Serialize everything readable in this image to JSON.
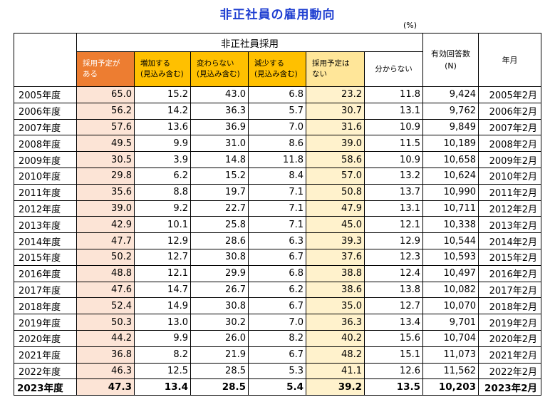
{
  "title": "非正社員の雇用動向",
  "unit": "(%)",
  "headers": {
    "group": "非正社員採用",
    "col1": [
      "採用予定が",
      "ある"
    ],
    "col2": [
      "増加する",
      "(見込み含む)"
    ],
    "col3": [
      "変わらない",
      "(見込み含む)"
    ],
    "col4": [
      "減少する",
      "(見込み含む)"
    ],
    "col5": [
      "採用予定は",
      "ない"
    ],
    "col6": "分からない",
    "responses": [
      "有効回答数",
      "(N)"
    ],
    "yearmonth": "年月"
  },
  "rows": [
    {
      "year": "2005年度",
      "v1": "65.0",
      "v2": "15.2",
      "v3": "43.0",
      "v4": "6.8",
      "v5": "23.2",
      "v6": "11.8",
      "n": "9,424",
      "ym": "2005年2月"
    },
    {
      "year": "2006年度",
      "v1": "56.2",
      "v2": "14.2",
      "v3": "36.3",
      "v4": "5.7",
      "v5": "30.7",
      "v6": "13.1",
      "n": "9,762",
      "ym": "2006年2月"
    },
    {
      "year": "2007年度",
      "v1": "57.6",
      "v2": "13.6",
      "v3": "36.9",
      "v4": "7.0",
      "v5": "31.6",
      "v6": "10.9",
      "n": "9,849",
      "ym": "2007年2月"
    },
    {
      "year": "2008年度",
      "v1": "49.5",
      "v2": "9.9",
      "v3": "31.0",
      "v4": "8.6",
      "v5": "39.0",
      "v6": "11.5",
      "n": "10,189",
      "ym": "2008年2月"
    },
    {
      "year": "2009年度",
      "v1": "30.5",
      "v2": "3.9",
      "v3": "14.8",
      "v4": "11.8",
      "v5": "58.6",
      "v6": "10.9",
      "n": "10,658",
      "ym": "2009年2月"
    },
    {
      "year": "2010年度",
      "v1": "29.8",
      "v2": "6.2",
      "v3": "15.2",
      "v4": "8.4",
      "v5": "57.0",
      "v6": "13.2",
      "n": "10,624",
      "ym": "2010年2月"
    },
    {
      "year": "2011年度",
      "v1": "35.6",
      "v2": "8.8",
      "v3": "19.7",
      "v4": "7.1",
      "v5": "50.8",
      "v6": "13.7",
      "n": "10,990",
      "ym": "2011年2月"
    },
    {
      "year": "2012年度",
      "v1": "39.0",
      "v2": "9.2",
      "v3": "22.7",
      "v4": "7.1",
      "v5": "47.9",
      "v6": "13.1",
      "n": "10,711",
      "ym": "2012年2月"
    },
    {
      "year": "2013年度",
      "v1": "42.9",
      "v2": "10.1",
      "v3": "25.8",
      "v4": "7.1",
      "v5": "45.0",
      "v6": "12.1",
      "n": "10,338",
      "ym": "2013年2月"
    },
    {
      "year": "2014年度",
      "v1": "47.7",
      "v2": "12.9",
      "v3": "28.6",
      "v4": "6.3",
      "v5": "39.3",
      "v6": "12.9",
      "n": "10,544",
      "ym": "2014年2月"
    },
    {
      "year": "2015年度",
      "v1": "50.2",
      "v2": "12.7",
      "v3": "30.8",
      "v4": "6.7",
      "v5": "37.6",
      "v6": "12.3",
      "n": "10,593",
      "ym": "2015年2月"
    },
    {
      "year": "2016年度",
      "v1": "48.8",
      "v2": "12.1",
      "v3": "29.9",
      "v4": "6.8",
      "v5": "38.8",
      "v6": "12.4",
      "n": "10,497",
      "ym": "2016年2月"
    },
    {
      "year": "2017年度",
      "v1": "47.6",
      "v2": "14.7",
      "v3": "26.7",
      "v4": "6.2",
      "v5": "38.6",
      "v6": "13.8",
      "n": "10,082",
      "ym": "2017年2月"
    },
    {
      "year": "2018年度",
      "v1": "52.4",
      "v2": "14.9",
      "v3": "30.8",
      "v4": "6.7",
      "v5": "35.0",
      "v6": "12.7",
      "n": "10,070",
      "ym": "2018年2月"
    },
    {
      "year": "2019年度",
      "v1": "50.3",
      "v2": "13.0",
      "v3": "30.2",
      "v4": "7.0",
      "v5": "36.3",
      "v6": "13.4",
      "n": "9,701",
      "ym": "2019年2月"
    },
    {
      "year": "2020年度",
      "v1": "44.2",
      "v2": "9.9",
      "v3": "26.0",
      "v4": "8.2",
      "v5": "40.2",
      "v6": "15.6",
      "n": "10,704",
      "ym": "2020年2月"
    },
    {
      "year": "2021年度",
      "v1": "36.8",
      "v2": "8.2",
      "v3": "21.9",
      "v4": "6.7",
      "v5": "48.2",
      "v6": "15.1",
      "n": "11,073",
      "ym": "2021年2月"
    },
    {
      "year": "2022年度",
      "v1": "46.3",
      "v2": "12.5",
      "v3": "28.5",
      "v4": "5.3",
      "v5": "41.1",
      "v6": "12.6",
      "n": "11,562",
      "ym": "2022年2月"
    },
    {
      "year": "2023年度",
      "v1": "47.3",
      "v2": "13.4",
      "v3": "28.5",
      "v4": "5.4",
      "v5": "39.2",
      "v6": "13.5",
      "n": "10,203",
      "ym": "2023年2月"
    }
  ],
  "colors": {
    "title": "#1f3fd1",
    "plan_header": "#ed7d31",
    "change_header": "#ffc000",
    "no_plan_header": "#ffe699",
    "plan_cells": "#fce4d6",
    "no_plan_cells": "#fff2cc"
  }
}
